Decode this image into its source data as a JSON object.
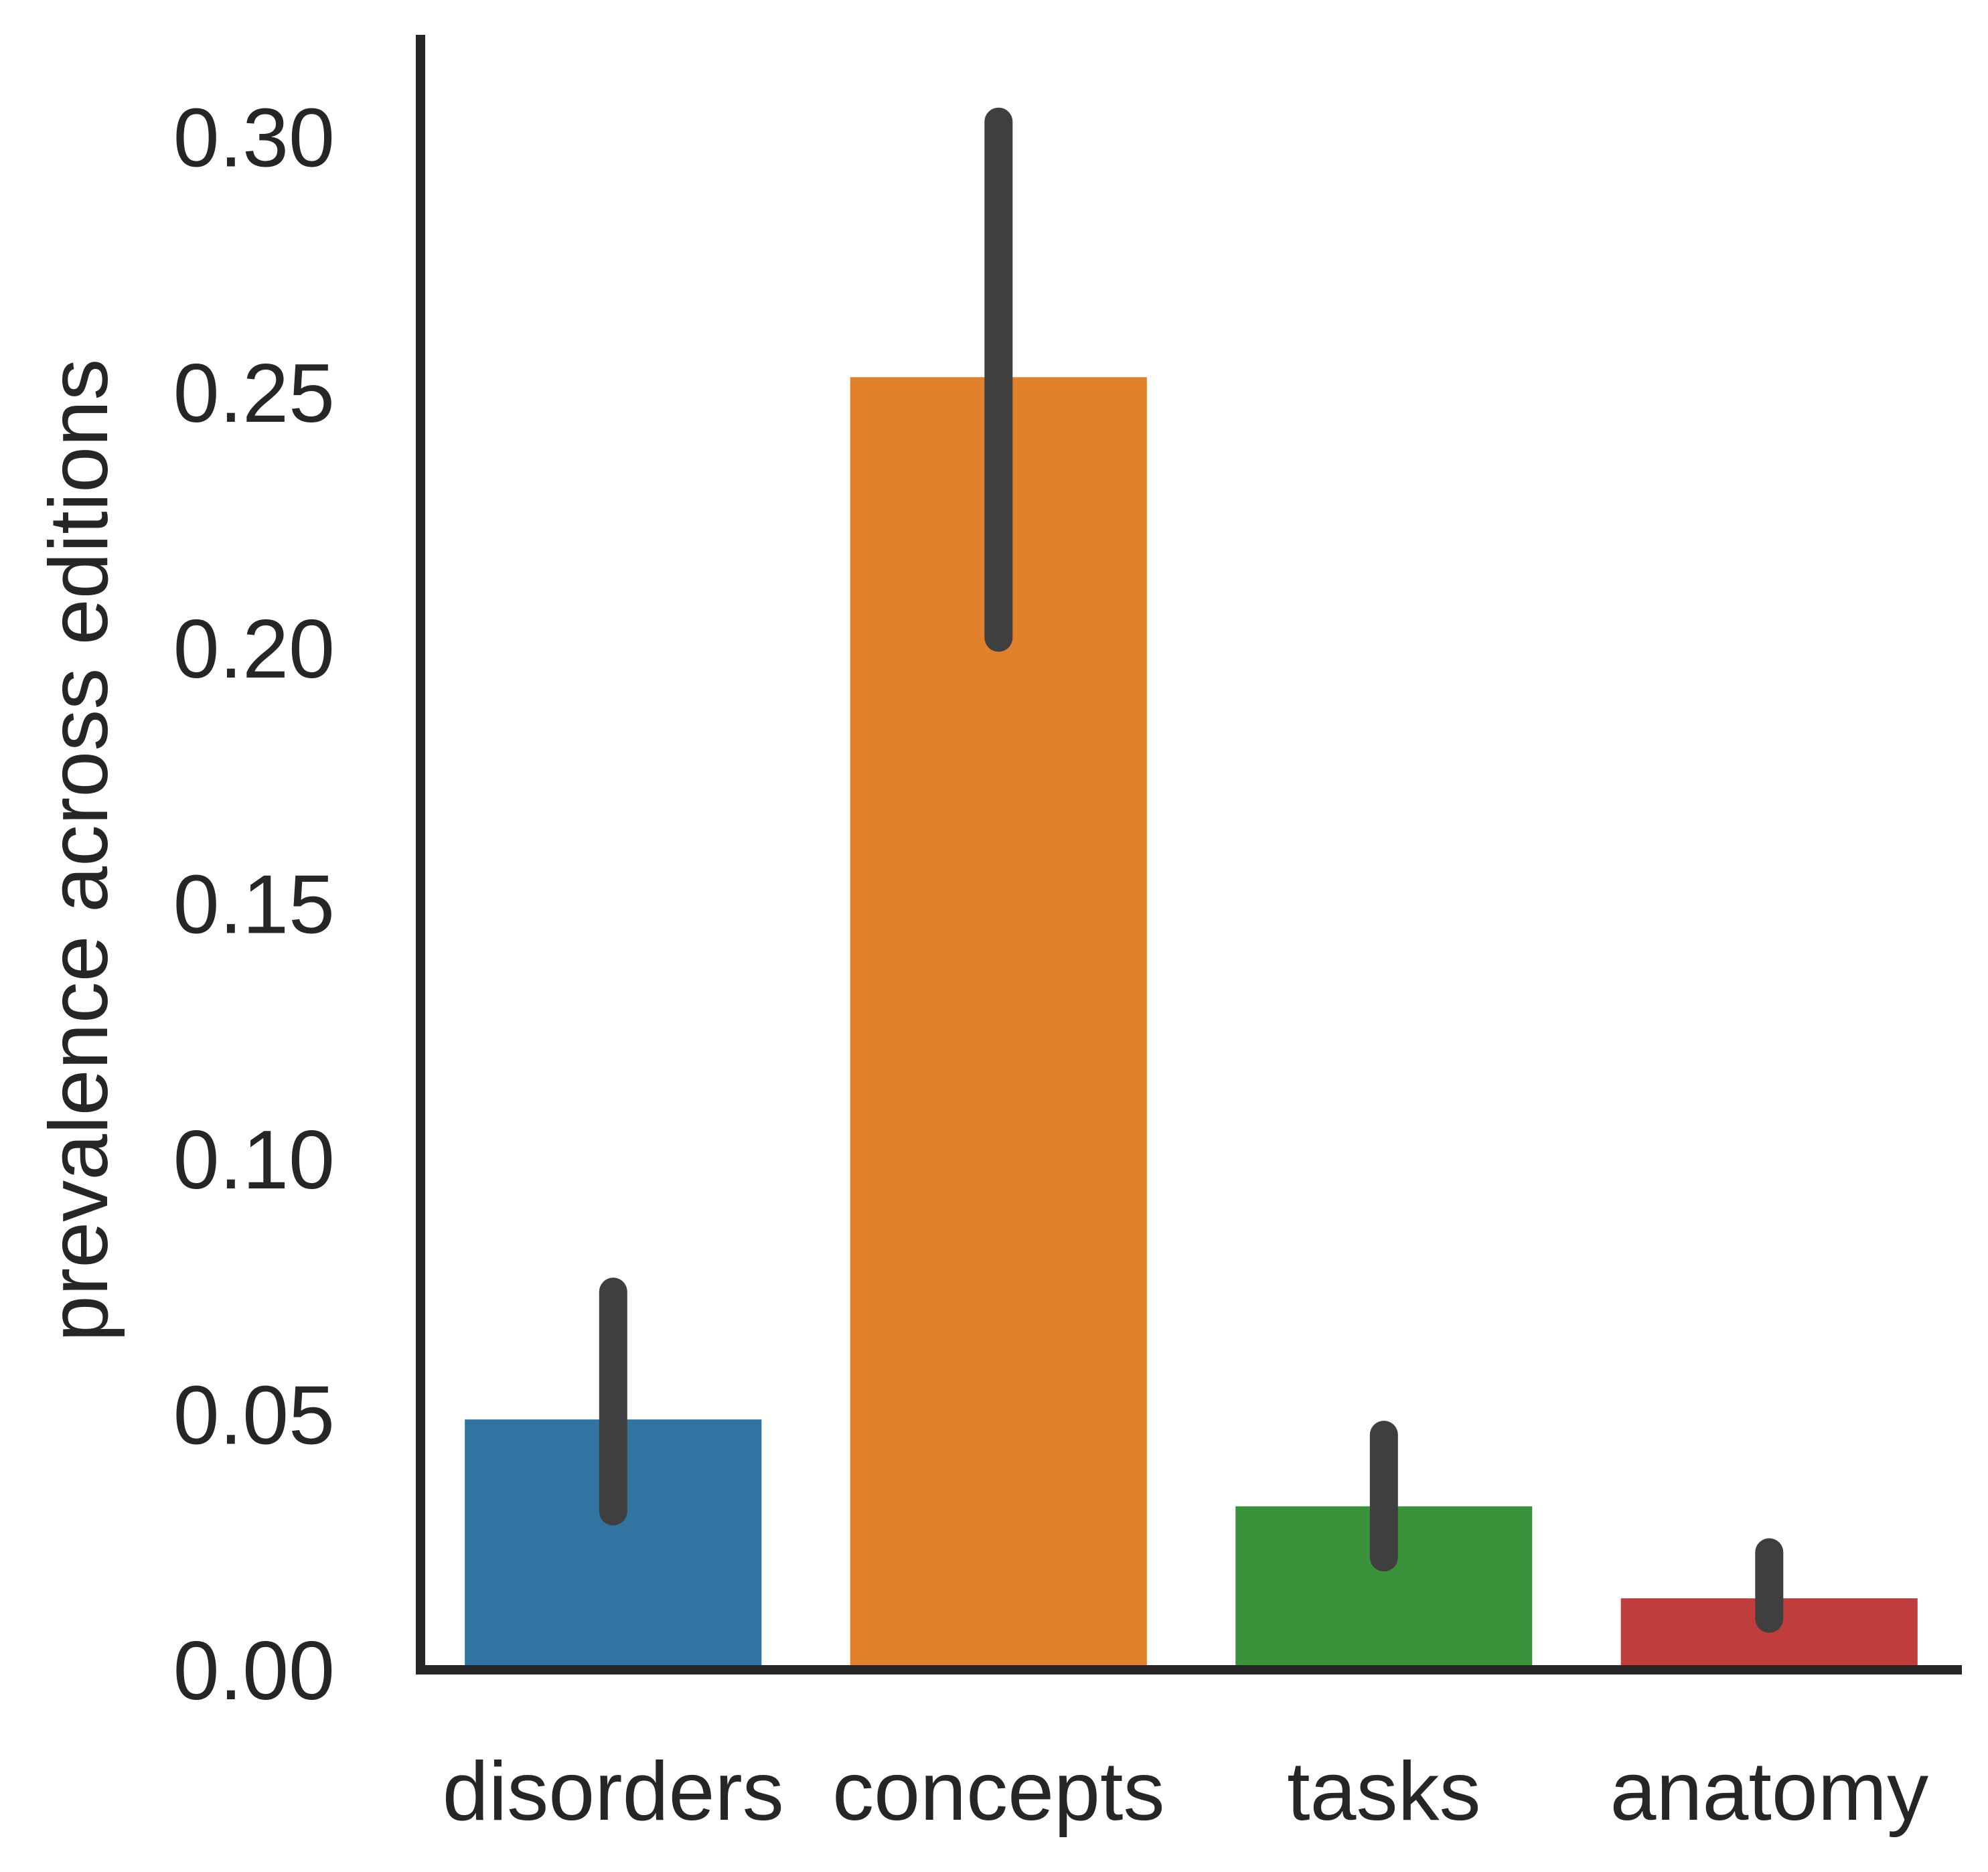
{
  "chart_data": {
    "type": "bar",
    "title": "",
    "xlabel": "",
    "ylabel": "prevalence across editions",
    "categories": [
      "disorders",
      "concepts",
      "tasks",
      "anatomy"
    ],
    "values": [
      0.049,
      0.253,
      0.032,
      0.014
    ],
    "error_bars": [
      {
        "low": 0.031,
        "high": 0.074
      },
      {
        "low": 0.202,
        "high": 0.303
      },
      {
        "low": 0.022,
        "high": 0.046
      },
      {
        "low": 0.01,
        "high": 0.023
      }
    ],
    "colors": [
      "#3274a1",
      "#e1812c",
      "#3a923a",
      "#c03d3e"
    ],
    "error_bar_color": "#3f3f3f",
    "ylim": [
      0,
      0.32
    ],
    "yticks": [
      0.0,
      0.05,
      0.1,
      0.15,
      0.2,
      0.25,
      0.3
    ],
    "ytick_labels": [
      "0.00",
      "0.05",
      "0.10",
      "0.15",
      "0.20",
      "0.25",
      "0.30"
    ],
    "grid": false,
    "spines": [
      "left",
      "bottom"
    ]
  }
}
